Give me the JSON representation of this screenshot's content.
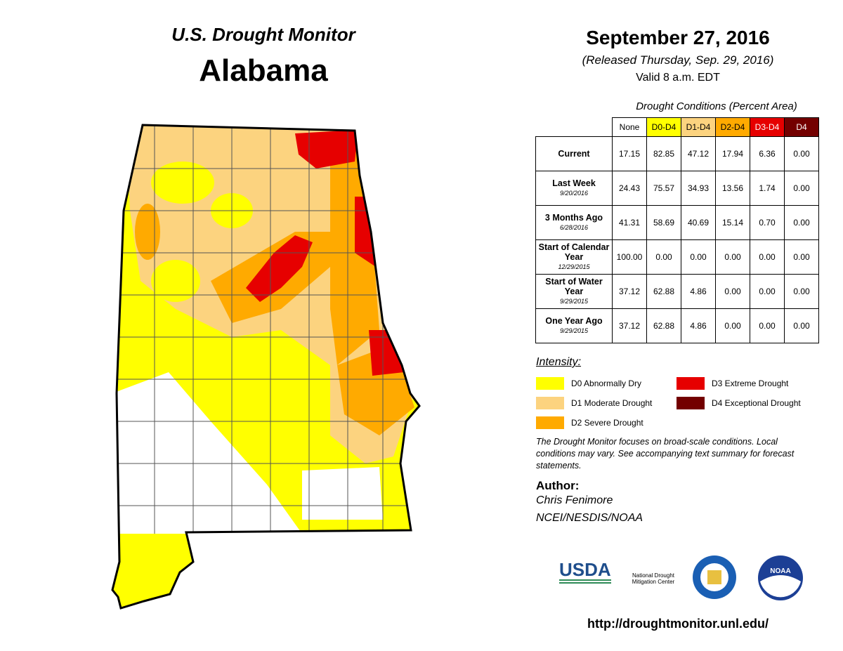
{
  "header": {
    "title": "U.S. Drought Monitor",
    "state": "Alabama",
    "date": "September 27, 2016",
    "released": "(Released Thursday, Sep. 29, 2016)",
    "valid": "Valid 8 a.m. EDT"
  },
  "table": {
    "caption": "Drought Conditions (Percent Area)",
    "columns": [
      {
        "label": "None",
        "color": "#ffffff",
        "text": "#000000"
      },
      {
        "label": "D0-D4",
        "color": "#ffff00",
        "text": "#000000"
      },
      {
        "label": "D1-D4",
        "color": "#fcd37f",
        "text": "#000000"
      },
      {
        "label": "D2-D4",
        "color": "#ffaa00",
        "text": "#000000"
      },
      {
        "label": "D3-D4",
        "color": "#e60000",
        "text": "#ffffff"
      },
      {
        "label": "D4",
        "color": "#730000",
        "text": "#ffffff"
      }
    ],
    "rows": [
      {
        "label": "Current",
        "values": [
          "17.15",
          "82.85",
          "47.12",
          "17.94",
          "6.36",
          "0.00"
        ]
      },
      {
        "label": "Last Week",
        "sublabel": "9/20/2016",
        "values": [
          "24.43",
          "75.57",
          "34.93",
          "13.56",
          "1.74",
          "0.00"
        ]
      },
      {
        "label": "3 Months Ago",
        "sublabel": "6/28/2016",
        "values": [
          "41.31",
          "58.69",
          "40.69",
          "15.14",
          "0.70",
          "0.00"
        ]
      },
      {
        "label": "Start of Calendar Year",
        "sublabel": "12/29/2015",
        "values": [
          "100.00",
          "0.00",
          "0.00",
          "0.00",
          "0.00",
          "0.00"
        ]
      },
      {
        "label": "Start of Water Year",
        "sublabel": "9/29/2015",
        "values": [
          "37.12",
          "62.88",
          "4.86",
          "0.00",
          "0.00",
          "0.00"
        ]
      },
      {
        "label": "One Year Ago",
        "sublabel": "9/29/2015",
        "values": [
          "37.12",
          "62.88",
          "4.86",
          "0.00",
          "0.00",
          "0.00"
        ]
      }
    ]
  },
  "legend": {
    "title": "Intensity:",
    "items": [
      {
        "label": "D0 Abnormally Dry",
        "color": "#ffff00"
      },
      {
        "label": "D3 Extreme Drought",
        "color": "#e60000"
      },
      {
        "label": "D1 Moderate Drought",
        "color": "#fcd37f"
      },
      {
        "label": "D4 Exceptional Drought",
        "color": "#730000"
      },
      {
        "label": "D2 Severe Drought",
        "color": "#ffaa00"
      }
    ]
  },
  "note": "The Drought Monitor focuses on broad-scale conditions. Local conditions may vary. See accompanying text summary for forecast statements.",
  "author": {
    "title": "Author:",
    "name": "Chris Fenimore",
    "org": "NCEI/NESDIS/NOAA"
  },
  "logos": {
    "usda": "USDA",
    "ndmc": "National Drought Mitigation Center",
    "noaa": "NOAA"
  },
  "url": "http://droughtmonitor.unl.edu/"
}
